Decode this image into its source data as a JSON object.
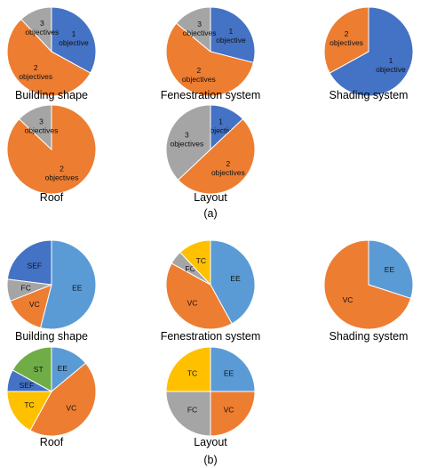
{
  "colors": {
    "blue": "#4472c4",
    "orange": "#ed7d31",
    "gray": "#a5a5a5",
    "lightblue": "#5b9bd5",
    "yellow": "#ffc000",
    "green": "#70ad47",
    "darkblue": "#2e5fa8"
  },
  "panels": [
    {
      "label": "(a)"
    },
    {
      "label": "(b)"
    }
  ],
  "chart_data": [
    {
      "type": "pie",
      "panel": "a",
      "title": "Building shape",
      "slices": [
        {
          "label": "1 objective",
          "lines": [
            "1",
            "objective"
          ],
          "value": 33,
          "color": "#4472c4"
        },
        {
          "label": "2 objectives",
          "lines": [
            "2",
            "objectives"
          ],
          "value": 55,
          "color": "#ed7d31"
        },
        {
          "label": "3 objectives",
          "lines": [
            "3",
            "objectives"
          ],
          "value": 12,
          "color": "#a5a5a5"
        }
      ]
    },
    {
      "type": "pie",
      "panel": "a",
      "title": "Fenestration system",
      "slices": [
        {
          "label": "1 objective",
          "lines": [
            "1",
            "objective"
          ],
          "value": 29,
          "color": "#4472c4"
        },
        {
          "label": "2 objectives",
          "lines": [
            "2",
            "objectives"
          ],
          "value": 57,
          "color": "#ed7d31"
        },
        {
          "label": "3 objectives",
          "lines": [
            "3",
            "objectives"
          ],
          "value": 14,
          "color": "#a5a5a5"
        }
      ]
    },
    {
      "type": "pie",
      "panel": "a",
      "title": "Shading system",
      "slices": [
        {
          "label": "1 objective",
          "lines": [
            "1",
            "objective"
          ],
          "value": 67,
          "color": "#4472c4"
        },
        {
          "label": "2 objectives",
          "lines": [
            "2",
            "objectives"
          ],
          "value": 33,
          "color": "#ed7d31"
        }
      ]
    },
    {
      "type": "pie",
      "panel": "a",
      "title": "Roof",
      "slices": [
        {
          "label": "2 objectives",
          "lines": [
            "2",
            "objectives"
          ],
          "value": 87,
          "color": "#ed7d31"
        },
        {
          "label": "3 objectives",
          "lines": [
            "3",
            "objectives"
          ],
          "value": 13,
          "color": "#a5a5a5"
        }
      ]
    },
    {
      "type": "pie",
      "panel": "a",
      "title": "Layout",
      "slices": [
        {
          "label": "1 objective",
          "lines": [
            "1",
            "objective"
          ],
          "value": 13,
          "color": "#4472c4"
        },
        {
          "label": "2 objectives",
          "lines": [
            "2",
            "objectives"
          ],
          "value": 50,
          "color": "#ed7d31"
        },
        {
          "label": "3 objectives",
          "lines": [
            "3",
            "objectives"
          ],
          "value": 37,
          "color": "#a5a5a5"
        }
      ]
    },
    {
      "type": "pie",
      "panel": "b",
      "title": "Building shape",
      "slices": [
        {
          "label": "EE",
          "lines": [
            "EE"
          ],
          "value": 54,
          "color": "#5b9bd5"
        },
        {
          "label": "VC",
          "lines": [
            "VC"
          ],
          "value": 15,
          "color": "#ed7d31"
        },
        {
          "label": "FC",
          "lines": [
            "FC"
          ],
          "value": 8,
          "color": "#a5a5a5"
        },
        {
          "label": "SEF",
          "lines": [
            "SEF"
          ],
          "value": 23,
          "color": "#4472c4"
        }
      ]
    },
    {
      "type": "pie",
      "panel": "b",
      "title": "Fenestration system",
      "slices": [
        {
          "label": "EE",
          "lines": [
            "EE"
          ],
          "value": 42,
          "color": "#5b9bd5"
        },
        {
          "label": "VC",
          "lines": [
            "VC"
          ],
          "value": 41,
          "color": "#ed7d31"
        },
        {
          "label": "FC",
          "lines": [
            "FC"
          ],
          "value": 5,
          "color": "#a5a5a5"
        },
        {
          "label": "TC",
          "lines": [
            "TC"
          ],
          "value": 12,
          "color": "#ffc000"
        }
      ]
    },
    {
      "type": "pie",
      "panel": "b",
      "title": "Shading system",
      "slices": [
        {
          "label": "EE",
          "lines": [
            "EE"
          ],
          "value": 30,
          "color": "#5b9bd5"
        },
        {
          "label": "VC",
          "lines": [
            "VC"
          ],
          "value": 70,
          "color": "#ed7d31"
        }
      ]
    },
    {
      "type": "pie",
      "panel": "b",
      "title": "Roof",
      "slices": [
        {
          "label": "EE",
          "lines": [
            "EE"
          ],
          "value": 14,
          "color": "#5b9bd5"
        },
        {
          "label": "VC",
          "lines": [
            "VC"
          ],
          "value": 44,
          "color": "#ed7d31"
        },
        {
          "label": "TC",
          "lines": [
            "TC"
          ],
          "value": 17,
          "color": "#ffc000"
        },
        {
          "label": "SEF",
          "lines": [
            "SEF"
          ],
          "value": 8,
          "color": "#4472c4"
        },
        {
          "label": "ST",
          "lines": [
            "ST"
          ],
          "value": 17,
          "color": "#70ad47"
        }
      ]
    },
    {
      "type": "pie",
      "panel": "b",
      "title": "Layout",
      "slices": [
        {
          "label": "EE",
          "lines": [
            "EE"
          ],
          "value": 25,
          "color": "#5b9bd5"
        },
        {
          "label": "VC",
          "lines": [
            "VC"
          ],
          "value": 25,
          "color": "#ed7d31"
        },
        {
          "label": "FC",
          "lines": [
            "FC"
          ],
          "value": 25,
          "color": "#a5a5a5"
        },
        {
          "label": "TC",
          "lines": [
            "TC"
          ],
          "value": 25,
          "color": "#ffc000"
        }
      ]
    }
  ]
}
